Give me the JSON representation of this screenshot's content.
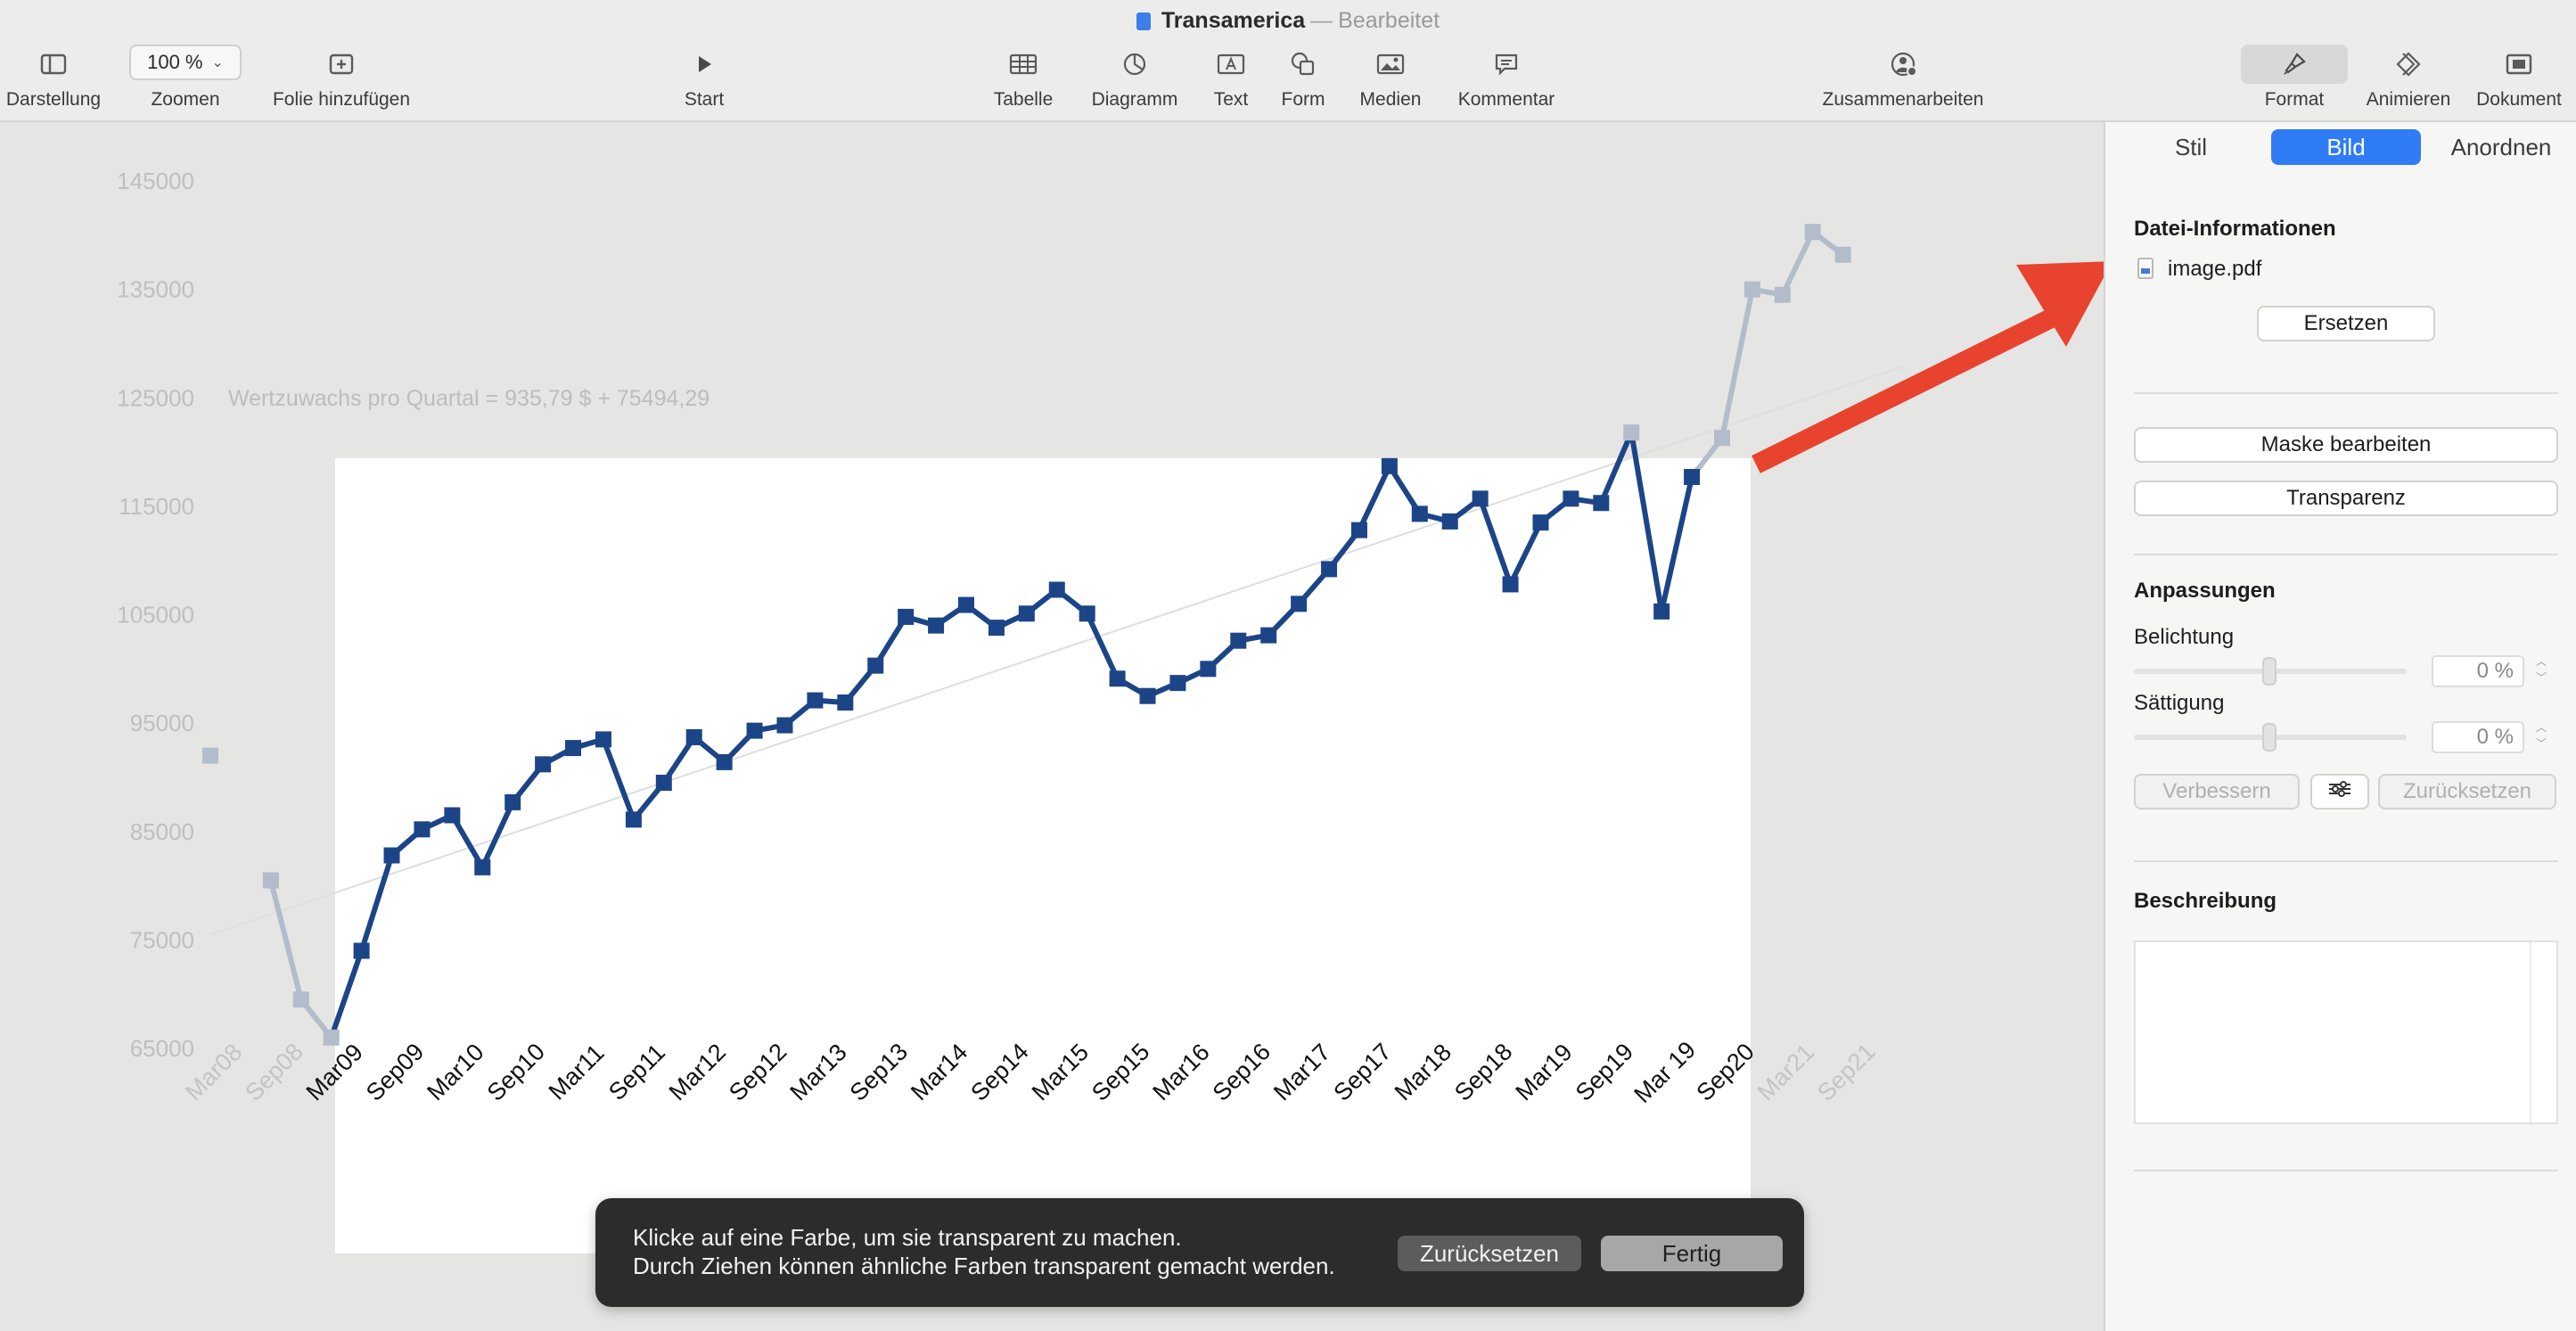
{
  "window": {
    "title": "Transamerica",
    "separator": "—",
    "status": "Bearbeitet"
  },
  "toolbar": {
    "items": [
      {
        "label": "Darstellung",
        "icon": "sidebar-icon"
      },
      {
        "label": "Zoomen",
        "icon": "zoom-popup",
        "value": "100 %"
      },
      {
        "label": "Folie hinzufügen",
        "icon": "add-slide-icon"
      },
      {
        "label": "Start",
        "icon": "play-icon"
      },
      {
        "label": "Tabelle",
        "icon": "table-icon"
      },
      {
        "label": "Diagramm",
        "icon": "chart-icon"
      },
      {
        "label": "Text",
        "icon": "text-box-icon"
      },
      {
        "label": "Form",
        "icon": "shape-icon"
      },
      {
        "label": "Medien",
        "icon": "media-icon"
      },
      {
        "label": "Kommentar",
        "icon": "comment-icon"
      },
      {
        "label": "Zusammenarbeiten",
        "icon": "collaborate-icon"
      },
      {
        "label": "Format",
        "icon": "paintbrush-icon",
        "selected": true
      },
      {
        "label": "Animieren",
        "icon": "diamond-icon"
      },
      {
        "label": "Dokument",
        "icon": "document-icon"
      }
    ]
  },
  "chart_data": {
    "type": "line",
    "yticks": [
      "145000",
      "135000",
      "125000",
      "115000",
      "105000",
      "95000",
      "85000",
      "75000",
      "65000"
    ],
    "ylim": [
      65000,
      145000
    ],
    "xticks": [
      "Mar08",
      "Sep08",
      "Mar09",
      "Sep09",
      "Mar10",
      "Sep10",
      "Mar11",
      "Sep11",
      "Mar12",
      "Sep12",
      "Mar13",
      "Sep13",
      "Mar14",
      "Sep14",
      "Mar15",
      "Sep15",
      "Mar16",
      "Sep16",
      "Mar17",
      "Sep17",
      "Mar18",
      "Sep18",
      "Mar19",
      "Sep19",
      "Mar 19",
      "Sep20",
      "Mar21",
      "Sep21"
    ],
    "annotation": "Wertzuwachs pro Quartal = 935,79 $ + 75494,29",
    "series": [
      {
        "values": [
          92000,
          null,
          80500,
          69500,
          66000,
          74000,
          82800,
          85200,
          86500,
          81700,
          87700,
          91200,
          92700,
          93500,
          86100,
          89500,
          93700,
          91400,
          94300,
          94800,
          97100,
          96900,
          100300,
          104800,
          104000,
          105900,
          103800,
          105100,
          107300,
          105100,
          99100,
          97500,
          98700,
          100000,
          102600,
          103100,
          106000,
          109200,
          112800,
          118700,
          114300,
          113600,
          115700,
          107800,
          113500,
          115700,
          115300,
          121800,
          105300,
          117700,
          121300,
          135000,
          134500,
          140300,
          138200
        ]
      }
    ],
    "trendline": {
      "slope": 935.79,
      "intercept": 75494.29
    }
  },
  "hud": {
    "message_line1": "Klicke auf eine Farbe, um sie transparent zu machen.",
    "message_line2": "Durch Ziehen können ähnliche Farben transparent gemacht werden.",
    "reset_label": "Zurücksetzen",
    "done_label": "Fertig"
  },
  "inspector": {
    "tabs": [
      "Stil",
      "Bild",
      "Anordnen"
    ],
    "active_tab": "Bild",
    "file_info_heading": "Datei-Informationen",
    "file_name": "image.pdf",
    "replace_label": "Ersetzen",
    "edit_mask_label": "Maske bearbeiten",
    "transparency_label": "Transparenz",
    "adjustments_heading": "Anpassungen",
    "exposure_label": "Belichtung",
    "exposure_value": "0 %",
    "saturation_label": "Sättigung",
    "saturation_value": "0 %",
    "enhance_label": "Verbessern",
    "reset_label": "Zurücksetzen",
    "description_heading": "Beschreibung"
  },
  "colors": {
    "line": "#1c4587",
    "faded_line": "#b3bccb",
    "arrow": "#e8432f",
    "accent": "#2f7cf6"
  }
}
